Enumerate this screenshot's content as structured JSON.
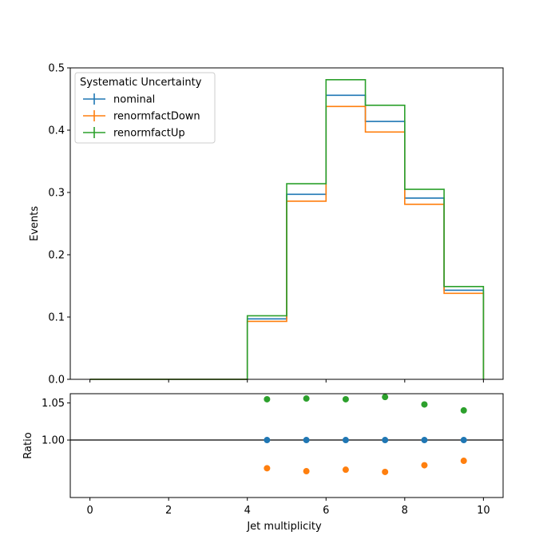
{
  "chart_data": [
    {
      "type": "line",
      "drawstyle": "step",
      "ylabel": "Events",
      "xlabel": "",
      "xlim": [
        -0.5,
        10.5
      ],
      "ylim": [
        0,
        0.5
      ],
      "yticks": [
        0.0,
        0.1,
        0.2,
        0.3,
        0.4,
        0.5
      ],
      "ytick_labels": [
        "0.0",
        "0.1",
        "0.2",
        "0.3",
        "0.4",
        "0.5"
      ],
      "bin_edges": [
        0,
        1,
        2,
        3,
        4,
        5,
        6,
        7,
        8,
        9,
        10
      ],
      "legend": {
        "title": "Systematic Uncertainty",
        "placement": "top-left"
      },
      "series": [
        {
          "name": "nominal",
          "color": "#1f77b4",
          "values": [
            0,
            0,
            0,
            0,
            0.097,
            0.297,
            0.456,
            0.414,
            0.291,
            0.143
          ]
        },
        {
          "name": "renormfactDown",
          "color": "#ff7f0e",
          "values": [
            0,
            0,
            0,
            0,
            0.093,
            0.286,
            0.438,
            0.397,
            0.281,
            0.138
          ]
        },
        {
          "name": "renormfactUp",
          "color": "#2ca02c",
          "values": [
            0,
            0,
            0,
            0,
            0.102,
            0.314,
            0.481,
            0.44,
            0.305,
            0.149
          ]
        }
      ]
    },
    {
      "type": "scatter",
      "ylabel": "Ratio",
      "xlabel": "Jet multiplicity",
      "xlim": [
        -0.5,
        10.5
      ],
      "ylim": [
        0.9225,
        1.0625
      ],
      "yticks": [
        1.0,
        1.05
      ],
      "ytick_labels": [
        "1.00",
        "1.05"
      ],
      "xticks": [
        0,
        2,
        4,
        6,
        8,
        10
      ],
      "xtick_labels": [
        "0",
        "2",
        "4",
        "6",
        "8",
        "10"
      ],
      "reference_line": 1.0,
      "x": [
        4.5,
        5.5,
        6.5,
        7.5,
        8.5,
        9.5
      ],
      "series": [
        {
          "name": "nominal",
          "color": "#1f77b4",
          "values": [
            1.0,
            1.0,
            1.0,
            1.0,
            1.0,
            1.0
          ]
        },
        {
          "name": "renormfactDown",
          "color": "#ff7f0e",
          "values": [
            0.962,
            0.958,
            0.96,
            0.957,
            0.966,
            0.972
          ]
        },
        {
          "name": "renormfactUp",
          "color": "#2ca02c",
          "values": [
            1.055,
            1.056,
            1.055,
            1.058,
            1.048,
            1.04
          ]
        }
      ]
    }
  ]
}
